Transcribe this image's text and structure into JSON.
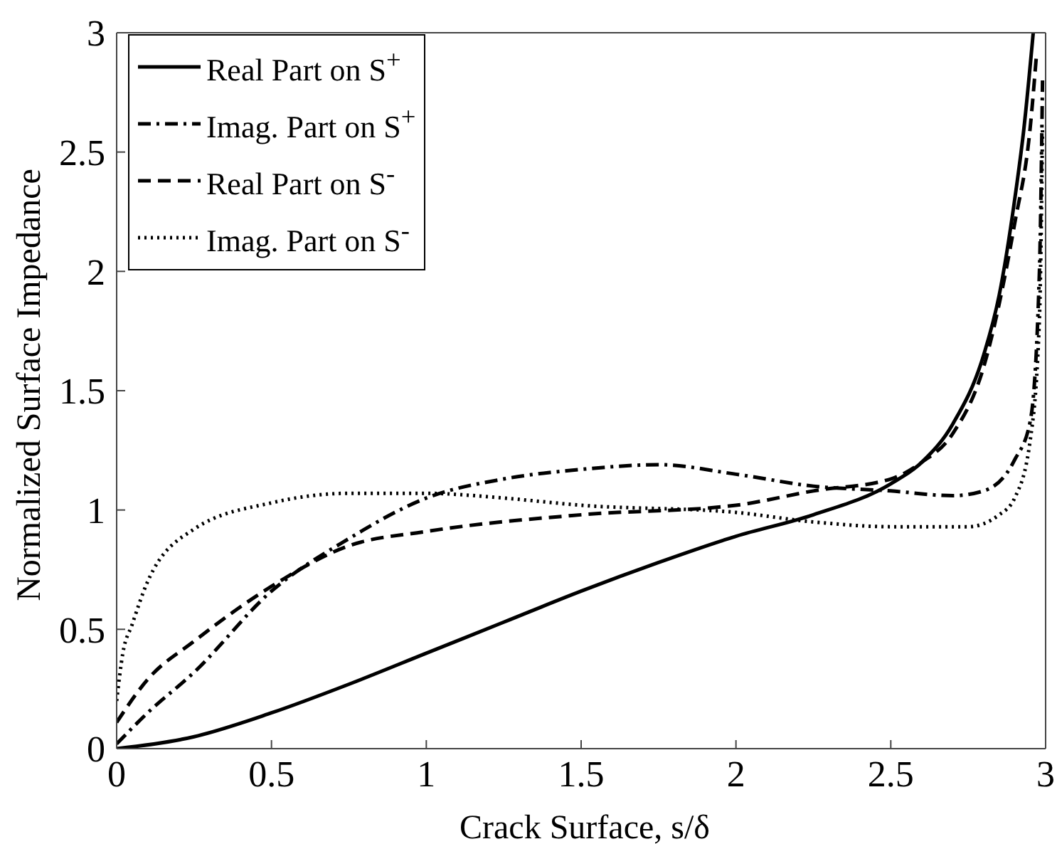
{
  "chart_data": {
    "type": "line",
    "xlabel": "Crack Surface, s/δ",
    "ylabel": "Normalized Surface Impedance",
    "xlim": [
      0,
      3
    ],
    "xticks": [
      0,
      0.5,
      1,
      1.5,
      2,
      2.5,
      3
    ],
    "ylim": [
      0,
      3
    ],
    "yticks": [
      0,
      0.5,
      1,
      1.5,
      2,
      2.5,
      3
    ],
    "grid": false,
    "legend": "top left",
    "marker": "none",
    "series": [
      {
        "name": "Real Part on S$^{+}$",
        "color": "#000000",
        "line_style": "solid",
        "x": [
          0,
          0.25,
          0.5,
          0.75,
          1,
          1.25,
          1.5,
          1.75,
          2,
          2.25,
          2.5,
          2.6,
          2.7,
          2.8,
          2.85,
          2.9,
          2.93,
          2.96
        ],
        "values": [
          0,
          0.05,
          0.15,
          0.27,
          0.4,
          0.53,
          0.66,
          0.78,
          0.89,
          0.98,
          1.11,
          1.2,
          1.36,
          1.65,
          1.9,
          2.3,
          2.6,
          3.0
        ]
      },
      {
        "name": "Imag. Part on S$^{+}$",
        "color": "#000000",
        "line_style": "dashdot",
        "x": [
          0,
          0.1,
          0.25,
          0.5,
          0.75,
          1,
          1.25,
          1.5,
          1.75,
          2,
          2.25,
          2.5,
          2.7,
          2.8,
          2.9,
          2.95,
          2.98,
          2.99
        ],
        "values": [
          0.02,
          0.15,
          0.32,
          0.66,
          0.88,
          1.05,
          1.13,
          1.17,
          1.19,
          1.15,
          1.1,
          1.08,
          1.06,
          1.08,
          1.21,
          1.37,
          2.0,
          2.8
        ]
      },
      {
        "name": "Real Part on S$^{-}$",
        "color": "#000000",
        "line_style": "dashed",
        "x": [
          0,
          0.1,
          0.25,
          0.5,
          0.75,
          1,
          1.5,
          2,
          2.25,
          2.5,
          2.6,
          2.7,
          2.8,
          2.9,
          2.95,
          2.97
        ],
        "values": [
          0.11,
          0.29,
          0.45,
          0.68,
          0.85,
          0.91,
          0.98,
          1.02,
          1.08,
          1.13,
          1.2,
          1.32,
          1.6,
          2.2,
          2.6,
          2.9
        ]
      },
      {
        "name": "Imag. Part on S$^{-}$",
        "color": "#000000",
        "line_style": "dotted",
        "x": [
          0,
          0.02,
          0.05,
          0.1,
          0.25,
          0.5,
          0.75,
          1,
          1.25,
          1.5,
          2,
          2.25,
          2.5,
          2.75,
          2.85,
          2.9,
          2.95,
          2.98,
          2.99
        ],
        "values": [
          0.2,
          0.4,
          0.52,
          0.7,
          0.92,
          1.03,
          1.07,
          1.07,
          1.05,
          1.02,
          0.99,
          0.95,
          0.93,
          0.93,
          0.98,
          1.05,
          1.29,
          1.8,
          2.6
        ]
      }
    ]
  }
}
